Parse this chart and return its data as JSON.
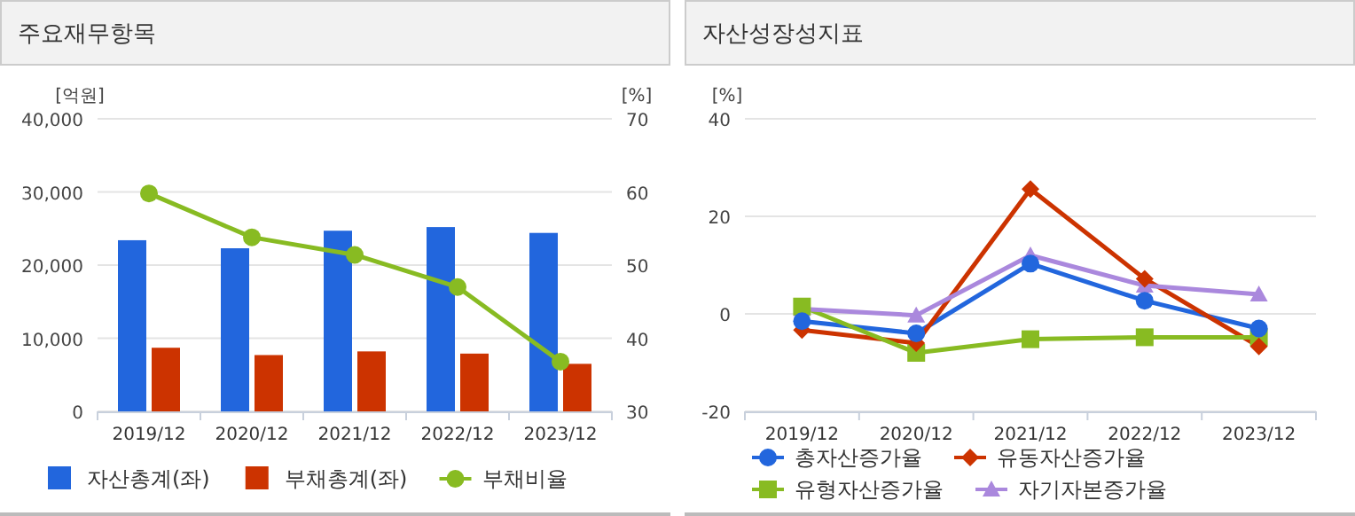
{
  "chart_data": [
    {
      "type": "bar",
      "title": "주요재무항목",
      "ylabel": "[억원]",
      "y2label": "[%]",
      "categories": [
        "2019/12",
        "2020/12",
        "2021/12",
        "2022/12",
        "2023/12"
      ],
      "series": [
        {
          "name": "자산총계(좌)",
          "color": "#2266dd",
          "values": [
            23400,
            22300,
            24700,
            25200,
            24400
          ]
        },
        {
          "name": "부채총계(좌)",
          "color": "#cc3300",
          "values": [
            8700,
            7700,
            8200,
            7900,
            6500
          ]
        },
        {
          "name": "부채비율",
          "type": "line",
          "axis": "y2",
          "color": "#88bb22",
          "marker": "circle",
          "values": [
            59.8,
            53.8,
            51.4,
            47.0,
            36.8
          ]
        }
      ],
      "ylim": [
        0,
        40000
      ],
      "yticks": [
        {
          "value": 0,
          "label": "0"
        },
        {
          "value": 10000,
          "label": "10,000"
        },
        {
          "value": 20000,
          "label": "20,000"
        },
        {
          "value": 30000,
          "label": "30,000"
        },
        {
          "value": 40000,
          "label": "40,000"
        }
      ],
      "y2lim": [
        30,
        70
      ],
      "y2ticks": [
        30,
        40,
        50,
        60,
        70
      ],
      "grid": "y",
      "legend": "bottom"
    },
    {
      "type": "line",
      "title": "자산성장성지표",
      "ylabel": "[%]",
      "categories": [
        "2019/12",
        "2020/12",
        "2021/12",
        "2022/12",
        "2023/12"
      ],
      "series": [
        {
          "name": "총자산증가율",
          "color": "#2266dd",
          "marker": "circle",
          "values": [
            -1.5,
            -4.0,
            10.3,
            2.7,
            -3.0
          ]
        },
        {
          "name": "유동자산증가율",
          "color": "#cc3300",
          "marker": "diamond",
          "values": [
            -3.3,
            -6.0,
            25.6,
            7.2,
            -6.7
          ]
        },
        {
          "name": "유형자산증가율",
          "color": "#88bb22",
          "marker": "square",
          "values": [
            1.5,
            -8.0,
            -5.2,
            -4.8,
            -4.8
          ]
        },
        {
          "name": "자기자본증가율",
          "color": "#aa88dd",
          "marker": "triangle",
          "values": [
            1.0,
            -0.3,
            12.0,
            5.8,
            4.0
          ]
        }
      ],
      "ylim": [
        -20,
        40
      ],
      "yticks": [
        -20,
        0,
        20,
        40
      ],
      "grid": "y",
      "legend": "bottom"
    }
  ]
}
